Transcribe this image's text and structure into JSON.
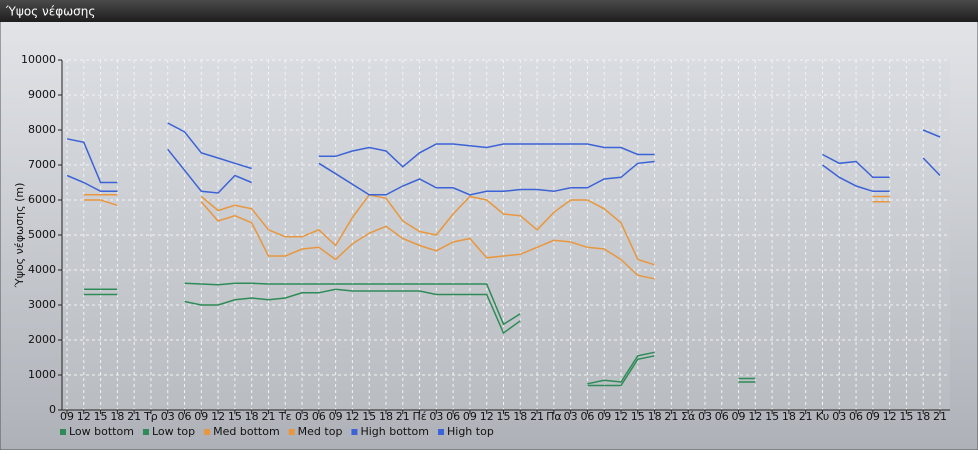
{
  "window_title": "Ύψος νέφωσης",
  "chart_data": {
    "type": "line",
    "y_label": "Ύψος νέφωσης (m)",
    "categories": [
      "09",
      "12",
      "15",
      "18",
      "21",
      "Τρ",
      "03",
      "06",
      "09",
      "12",
      "15",
      "18",
      "21",
      "Τε",
      "03",
      "06",
      "09",
      "12",
      "15",
      "18",
      "21",
      "Πέ",
      "03",
      "06",
      "09",
      "12",
      "15",
      "18",
      "21",
      "Πα",
      "03",
      "06",
      "09",
      "12",
      "15",
      "18",
      "21",
      "Σά",
      "03",
      "06",
      "09",
      "12",
      "15",
      "18",
      "21",
      "Κυ",
      "03",
      "06",
      "09",
      "12",
      "15",
      "18",
      "21"
    ],
    "ylim": [
      0,
      10000
    ],
    "yticks": [
      0,
      1000,
      2000,
      3000,
      4000,
      5000,
      6000,
      7000,
      8000,
      9000,
      10000
    ],
    "grid": true,
    "legend": "bottom",
    "series": [
      {
        "name": "Low bottom",
        "color": "#2e8b57",
        "values": [
          null,
          3300,
          3300,
          3300,
          null,
          null,
          null,
          3100,
          3000,
          3000,
          3150,
          3200,
          3150,
          3200,
          3350,
          3350,
          3450,
          3400,
          3400,
          3400,
          3400,
          3400,
          3300,
          3300,
          3300,
          3300,
          2200,
          2550,
          null,
          null,
          null,
          700,
          700,
          700,
          1450,
          1550,
          null,
          null,
          null,
          null,
          800,
          800,
          null,
          null,
          null,
          null,
          null,
          null,
          null,
          null,
          null,
          null,
          null
        ]
      },
      {
        "name": "Low top",
        "color": "#2e8b57",
        "values": [
          null,
          3450,
          3450,
          3450,
          null,
          null,
          null,
          3620,
          3600,
          3580,
          3620,
          3620,
          3600,
          3600,
          3600,
          3600,
          3600,
          3600,
          3600,
          3600,
          3600,
          3600,
          3600,
          3600,
          3600,
          3600,
          2450,
          2750,
          null,
          null,
          null,
          750,
          850,
          800,
          1550,
          1650,
          null,
          null,
          null,
          null,
          900,
          900,
          null,
          null,
          null,
          null,
          null,
          null,
          null,
          null,
          null,
          null,
          null
        ]
      },
      {
        "name": "Med bottom",
        "color": "#e8973f",
        "values": [
          null,
          6000,
          6000,
          5850,
          null,
          null,
          null,
          null,
          5950,
          5400,
          5550,
          5350,
          4400,
          4400,
          4600,
          4650,
          4300,
          4750,
          5050,
          5250,
          4900,
          4700,
          4550,
          4800,
          4900,
          4350,
          4400,
          4450,
          4650,
          4850,
          4800,
          4650,
          4600,
          4300,
          3850,
          3750,
          null,
          null,
          null,
          null,
          null,
          null,
          null,
          null,
          null,
          null,
          null,
          null,
          5950,
          5950,
          null,
          null,
          null
        ]
      },
      {
        "name": "Med top",
        "color": "#e8973f",
        "values": [
          null,
          6150,
          6150,
          6150,
          null,
          null,
          null,
          null,
          6100,
          5700,
          5850,
          5750,
          5150,
          4950,
          4950,
          5150,
          4700,
          5500,
          6150,
          6050,
          5400,
          5100,
          5000,
          5600,
          6100,
          6000,
          5600,
          5550,
          5150,
          5650,
          6000,
          6000,
          5750,
          5350,
          4300,
          4150,
          null,
          null,
          null,
          null,
          null,
          null,
          null,
          null,
          null,
          null,
          null,
          null,
          6100,
          6100,
          null,
          null,
          null
        ]
      },
      {
        "name": "High bottom",
        "color": "#3b62d6",
        "values": [
          6700,
          6500,
          6250,
          6250,
          null,
          null,
          7450,
          6850,
          6250,
          6200,
          6700,
          6500,
          null,
          null,
          null,
          7050,
          6750,
          6450,
          6150,
          6150,
          6400,
          6600,
          6350,
          6350,
          6150,
          6250,
          6250,
          6300,
          6300,
          6250,
          6350,
          6350,
          6600,
          6650,
          7050,
          7100,
          null,
          null,
          null,
          null,
          null,
          null,
          null,
          null,
          null,
          7000,
          6650,
          6400,
          6250,
          6250,
          null,
          7200,
          6700
        ]
      },
      {
        "name": "High top",
        "color": "#3b62d6",
        "values": [
          7750,
          7650,
          6500,
          6500,
          null,
          null,
          8200,
          7950,
          7350,
          7200,
          7050,
          6900,
          null,
          null,
          null,
          7250,
          7250,
          7400,
          7500,
          7400,
          6950,
          7350,
          7600,
          7600,
          7550,
          7500,
          7600,
          7600,
          7600,
          7600,
          7600,
          7600,
          7500,
          7500,
          7300,
          7300,
          null,
          null,
          null,
          null,
          null,
          null,
          null,
          null,
          null,
          7300,
          7050,
          7100,
          6650,
          6650,
          null,
          8000,
          7800
        ]
      }
    ]
  }
}
